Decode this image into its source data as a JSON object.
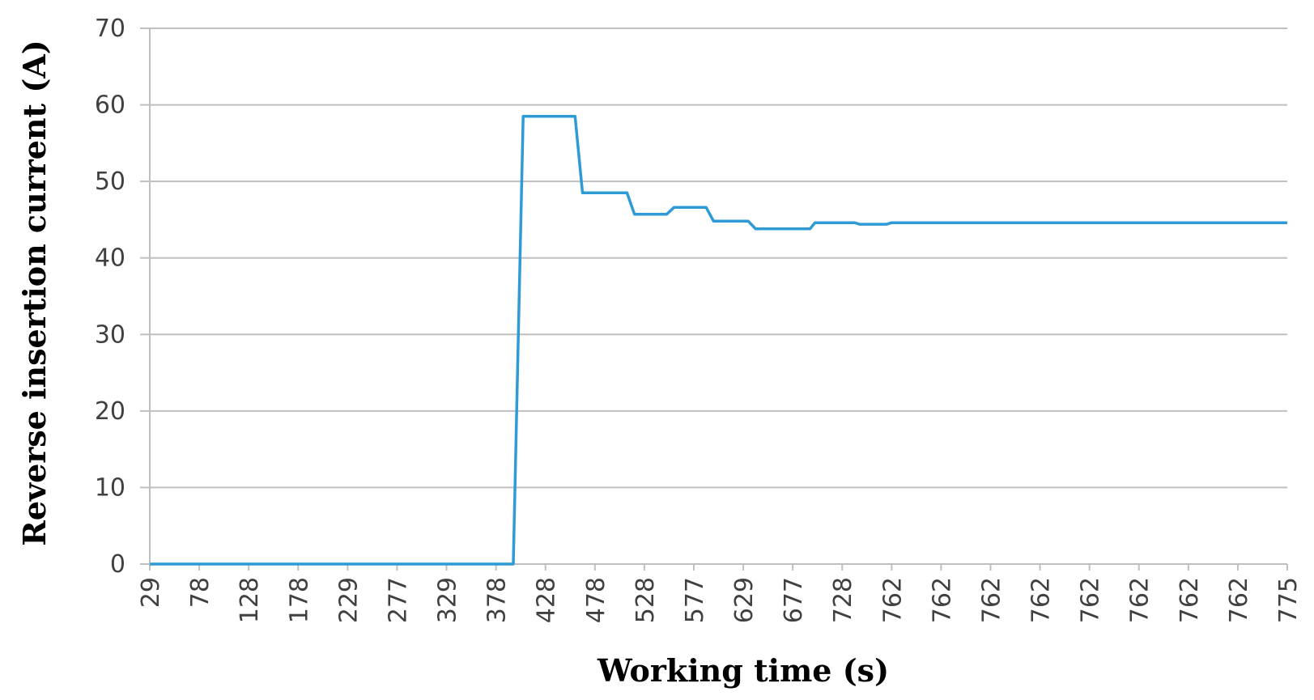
{
  "chart_data": {
    "type": "line",
    "title": "",
    "xlabel": "Working time (s)",
    "ylabel": "Reverse insertion current (A)",
    "ylim": [
      0,
      70
    ],
    "yticks": [
      0,
      10,
      20,
      30,
      40,
      50,
      60,
      70
    ],
    "x_tick_labels": [
      "29",
      "78",
      "128",
      "178",
      "229",
      "277",
      "329",
      "378",
      "428",
      "478",
      "528",
      "577",
      "629",
      "677",
      "728",
      "762",
      "762",
      "762",
      "762",
      "762",
      "762",
      "762",
      "762",
      "775"
    ],
    "grid": true,
    "legend": "none",
    "series": [
      {
        "color": "#2e9bd6",
        "points": [
          [
            0,
            0
          ],
          [
            7.35,
            0
          ],
          [
            7.55,
            58.5
          ],
          [
            8.6,
            58.5
          ],
          [
            8.75,
            48.5
          ],
          [
            9.65,
            48.5
          ],
          [
            9.8,
            45.7
          ],
          [
            10.45,
            45.7
          ],
          [
            10.6,
            46.6
          ],
          [
            11.25,
            46.6
          ],
          [
            11.4,
            44.8
          ],
          [
            12.1,
            44.8
          ],
          [
            12.25,
            43.8
          ],
          [
            13.35,
            43.8
          ],
          [
            13.45,
            44.6
          ],
          [
            14.25,
            44.6
          ],
          [
            14.35,
            44.4
          ],
          [
            14.9,
            44.4
          ],
          [
            15.0,
            44.6
          ],
          [
            23,
            44.6
          ]
        ]
      }
    ]
  }
}
